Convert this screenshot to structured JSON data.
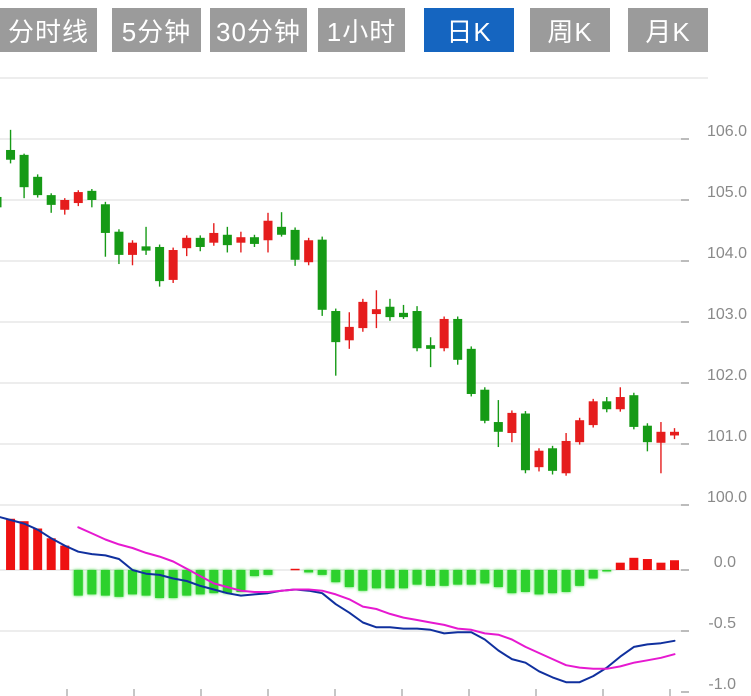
{
  "tabs": {
    "items": [
      {
        "name": "tab-timeline",
        "label": "分时线",
        "active": false
      },
      {
        "name": "tab-5min",
        "label": "5分钟",
        "active": false
      },
      {
        "name": "tab-30min",
        "label": "30分钟",
        "active": false
      },
      {
        "name": "tab-1hour",
        "label": "1小时",
        "active": false
      },
      {
        "name": "tab-daily-k",
        "label": "日K",
        "active": true
      },
      {
        "name": "tab-weekly-k",
        "label": "周K",
        "active": false
      },
      {
        "name": "tab-monthly-k",
        "label": "月K",
        "active": false
      }
    ],
    "active_bg": "#1565c0",
    "inactive_bg": "#9b9b9b",
    "text_color": "#ffffff"
  },
  "chart_data": {
    "type": "candlestick",
    "title": "",
    "legend": [],
    "grid": true,
    "price_axis": {
      "side": "right",
      "ticks": [
        "106.0",
        "105.0",
        "104.0",
        "103.0",
        "102.0",
        "101.0",
        "100.0"
      ],
      "values": [
        106.0,
        105.0,
        104.0,
        103.0,
        102.0,
        101.0,
        100.0
      ],
      "range_visible": [
        99.8,
        107.0
      ]
    },
    "macd_axis": {
      "side": "right",
      "ticks": [
        "0.0",
        "-0.5",
        "-1.0"
      ],
      "values": [
        0.0,
        -0.5,
        -1.0
      ],
      "range_visible": [
        -1.05,
        0.5
      ]
    },
    "candles_note": "each candle = [open, high, low, close, color]; color g=green(down, CN convention), r=red(up)",
    "candles": [
      [
        105.05,
        105.07,
        104.85,
        104.88,
        "g"
      ],
      [
        105.82,
        106.15,
        105.6,
        105.66,
        "g"
      ],
      [
        105.74,
        105.76,
        105.03,
        105.21,
        "g"
      ],
      [
        105.38,
        105.42,
        105.04,
        105.08,
        "g"
      ],
      [
        105.08,
        105.11,
        104.79,
        104.92,
        "g"
      ],
      [
        104.84,
        105.03,
        104.76,
        105.0,
        "r"
      ],
      [
        104.95,
        105.16,
        104.9,
        105.13,
        "r"
      ],
      [
        105.15,
        105.18,
        104.88,
        105.0,
        "g"
      ],
      [
        104.93,
        104.97,
        104.07,
        104.46,
        "g"
      ],
      [
        104.48,
        104.52,
        103.95,
        104.1,
        "g"
      ],
      [
        104.1,
        104.34,
        103.93,
        104.3,
        "r"
      ],
      [
        104.24,
        104.56,
        104.1,
        104.17,
        "g"
      ],
      [
        104.23,
        104.27,
        103.58,
        103.67,
        "g"
      ],
      [
        103.69,
        104.22,
        103.64,
        104.18,
        "r"
      ],
      [
        104.21,
        104.42,
        104.08,
        104.38,
        "r"
      ],
      [
        104.38,
        104.42,
        104.16,
        104.23,
        "g"
      ],
      [
        104.3,
        104.62,
        104.25,
        104.46,
        "r"
      ],
      [
        104.43,
        104.56,
        104.14,
        104.26,
        "g"
      ],
      [
        104.3,
        104.48,
        104.14,
        104.39,
        "r"
      ],
      [
        104.39,
        104.43,
        104.23,
        104.28,
        "g"
      ],
      [
        104.34,
        104.79,
        104.14,
        104.66,
        "r"
      ],
      [
        104.56,
        104.8,
        104.4,
        104.43,
        "g"
      ],
      [
        104.51,
        104.55,
        103.92,
        104.02,
        "g"
      ],
      [
        103.98,
        104.38,
        103.93,
        104.34,
        "r"
      ],
      [
        104.35,
        104.4,
        103.1,
        103.2,
        "g"
      ],
      [
        103.18,
        103.22,
        102.12,
        102.67,
        "g"
      ],
      [
        102.7,
        103.16,
        102.56,
        102.92,
        "r"
      ],
      [
        102.9,
        103.38,
        102.84,
        103.33,
        "r"
      ],
      [
        103.13,
        103.52,
        102.9,
        103.21,
        "r"
      ],
      [
        103.25,
        103.38,
        103.02,
        103.08,
        "g"
      ],
      [
        103.15,
        103.28,
        103.05,
        103.08,
        "g"
      ],
      [
        103.18,
        103.26,
        102.52,
        102.57,
        "g"
      ],
      [
        102.62,
        102.75,
        102.26,
        102.56,
        "g"
      ],
      [
        102.57,
        103.09,
        102.52,
        103.05,
        "r"
      ],
      [
        103.05,
        103.09,
        102.3,
        102.38,
        "g"
      ],
      [
        102.56,
        102.6,
        101.78,
        101.82,
        "g"
      ],
      [
        101.89,
        101.93,
        101.34,
        101.38,
        "g"
      ],
      [
        101.36,
        101.72,
        100.95,
        101.2,
        "g"
      ],
      [
        101.18,
        101.55,
        101.03,
        101.51,
        "r"
      ],
      [
        101.5,
        101.54,
        100.52,
        100.57,
        "g"
      ],
      [
        100.62,
        100.93,
        100.55,
        100.89,
        "r"
      ],
      [
        100.93,
        100.97,
        100.5,
        100.56,
        "g"
      ],
      [
        100.52,
        101.18,
        100.48,
        101.05,
        "r"
      ],
      [
        101.03,
        101.43,
        100.99,
        101.39,
        "r"
      ],
      [
        101.31,
        101.74,
        101.27,
        101.7,
        "r"
      ],
      [
        101.7,
        101.77,
        101.52,
        101.57,
        "g"
      ],
      [
        101.57,
        101.93,
        101.53,
        101.77,
        "r"
      ],
      [
        101.8,
        101.84,
        101.24,
        101.28,
        "g"
      ],
      [
        101.3,
        101.34,
        100.88,
        101.03,
        "g"
      ],
      [
        101.02,
        101.36,
        100.52,
        101.2,
        "r"
      ],
      [
        101.14,
        101.26,
        101.08,
        101.2,
        "r"
      ]
    ],
    "macd": {
      "hist": [
        null,
        0.42,
        0.4,
        0.34,
        0.26,
        0.2,
        -0.21,
        -0.2,
        -0.21,
        -0.22,
        -0.2,
        -0.21,
        -0.23,
        -0.23,
        -0.21,
        -0.2,
        -0.19,
        -0.19,
        -0.18,
        -0.05,
        -0.04,
        0.0,
        0.01,
        -0.02,
        -0.04,
        -0.1,
        -0.14,
        -0.17,
        -0.15,
        -0.15,
        -0.15,
        -0.12,
        -0.13,
        -0.13,
        -0.12,
        -0.12,
        -0.11,
        -0.14,
        -0.19,
        -0.18,
        -0.2,
        -0.19,
        -0.18,
        -0.13,
        -0.07,
        -0.01,
        0.06,
        0.1,
        0.09,
        0.06,
        0.08
      ],
      "dif": [
        0.44,
        0.41,
        0.38,
        0.33,
        0.26,
        0.2,
        0.15,
        0.13,
        0.12,
        0.09,
        0.0,
        -0.03,
        -0.04,
        -0.07,
        -0.09,
        -0.13,
        -0.16,
        -0.19,
        -0.21,
        -0.2,
        -0.19,
        -0.17,
        -0.16,
        -0.17,
        -0.19,
        -0.28,
        -0.35,
        -0.43,
        -0.47,
        -0.47,
        -0.48,
        -0.48,
        -0.49,
        -0.52,
        -0.51,
        -0.51,
        -0.57,
        -0.66,
        -0.73,
        -0.76,
        -0.83,
        -0.88,
        -0.92,
        -0.92,
        -0.87,
        -0.8,
        -0.71,
        -0.63,
        -0.61,
        -0.6,
        -0.58
      ],
      "dea": [
        null,
        null,
        null,
        null,
        null,
        null,
        0.35,
        0.3,
        0.25,
        0.21,
        0.18,
        0.14,
        0.11,
        0.07,
        0.01,
        -0.05,
        -0.11,
        -0.14,
        -0.17,
        -0.18,
        -0.18,
        -0.17,
        -0.16,
        -0.16,
        -0.17,
        -0.2,
        -0.24,
        -0.3,
        -0.32,
        -0.36,
        -0.39,
        -0.41,
        -0.43,
        -0.45,
        -0.48,
        -0.49,
        -0.52,
        -0.53,
        -0.57,
        -0.63,
        -0.68,
        -0.73,
        -0.78,
        -0.8,
        -0.81,
        -0.81,
        -0.79,
        -0.76,
        -0.74,
        -0.72,
        -0.69
      ]
    },
    "colors": {
      "candle_up_red": "#e51d1d",
      "candle_down_green": "#169a16",
      "hist_pos_red": "#ee1111",
      "hist_neg_green": "#2dd12d",
      "dif_line_blue": "#10309e",
      "dea_line_magenta": "#e619d0",
      "gridline": "#e2e2e2",
      "axis_tick": "#a8a8a8",
      "axis_text": "#8a8a8a",
      "background": "#ffffff"
    }
  }
}
